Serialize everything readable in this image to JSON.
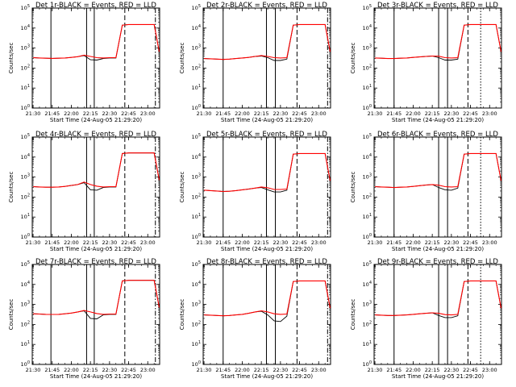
{
  "chart_data": {
    "type": "line",
    "x_tick_labels": [
      "21:30",
      "21:45",
      "22:00",
      "22:15",
      "22:30",
      "22:45",
      "23:00"
    ],
    "x_tick_times": [
      "21:30",
      "21:45",
      "22:00",
      "22:15",
      "22:30",
      "22:45",
      "23:00"
    ],
    "xlim": [
      "21:29:20",
      "23:09:20"
    ],
    "y_scale": "log",
    "ylim": [
      1,
      100000
    ],
    "y_tick_labels": [
      "10^0",
      "10^1",
      "10^2",
      "10^3",
      "10^4",
      "10^5"
    ],
    "ylabel": "Counts/sec",
    "xlabel": "Start Time (24-Aug-05 21:29:20)",
    "series_colors": {
      "Events": "#000000",
      "LLD": "#ff0000"
    },
    "time_grid": [
      "21:30",
      "21:35",
      "21:40",
      "21:45",
      "21:50",
      "21:55",
      "22:00",
      "22:05",
      "22:10",
      "22:15",
      "22:20",
      "22:25",
      "22:30",
      "22:35",
      "22:40",
      "22:45",
      "22:50",
      "22:55",
      "23:00",
      "23:05",
      "23:09"
    ],
    "panels": [
      {
        "title": "Det 1r-BLACK = Events, RED = LLD",
        "vlines_solid": [
          "21:44",
          "22:12",
          "22:18"
        ],
        "vlines_dashed": [
          "22:42"
        ],
        "vlines_dotted": [],
        "vlines_dashdot": [
          "23:06"
        ],
        "series": [
          {
            "name": "Events",
            "values": [
              330,
              320,
              310,
              305,
              310,
              320,
              340,
              370,
              420,
              260,
              250,
              300,
              320,
              320,
              14000,
              15000,
              15000,
              15000,
              15000,
              15000,
              650
            ]
          },
          {
            "name": "LLD",
            "values": [
              330,
              320,
              310,
              305,
              310,
              320,
              340,
              370,
              440,
              380,
              330,
              320,
              330,
              330,
              14000,
              15000,
              15000,
              15000,
              15000,
              15000,
              650
            ]
          }
        ]
      },
      {
        "title": "Det 2r-BLACK = Events, RED = LLD",
        "vlines_solid": [
          "21:45",
          "22:19",
          "22:26"
        ],
        "vlines_dashed": [
          "22:43"
        ],
        "vlines_dotted": [],
        "vlines_dashdot": [
          "23:07"
        ],
        "series": [
          {
            "name": "Events",
            "values": [
              300,
              290,
              280,
              270,
              280,
              300,
              320,
              340,
              380,
              400,
              330,
              240,
              240,
              280,
              14000,
              15000,
              15000,
              15000,
              15000,
              15000,
              650
            ]
          },
          {
            "name": "LLD",
            "values": [
              300,
              290,
              280,
              270,
              280,
              300,
              320,
              340,
              380,
              420,
              380,
              330,
              320,
              330,
              14000,
              15000,
              15000,
              15000,
              15000,
              15000,
              650
            ]
          }
        ]
      },
      {
        "title": "Det 3r-BLACK = Events, RED = LLD",
        "vlines_solid": [
          "21:45",
          "22:20",
          "22:27"
        ],
        "vlines_dashed": [
          "22:43"
        ],
        "vlines_dotted": [
          "22:53"
        ],
        "vlines_dashdot": [],
        "series": [
          {
            "name": "Events",
            "values": [
              320,
              310,
              300,
              300,
              310,
              320,
              340,
              360,
              380,
              400,
              330,
              250,
              250,
              280,
              14000,
              15000,
              15000,
              15000,
              15000,
              15000,
              650
            ]
          },
          {
            "name": "LLD",
            "values": [
              320,
              310,
              300,
              300,
              310,
              320,
              340,
              360,
              380,
              400,
              390,
              330,
              320,
              330,
              14000,
              15000,
              15000,
              15000,
              15000,
              15000,
              650
            ]
          }
        ]
      },
      {
        "title": "Det 4r-BLACK = Events, RED = LLD",
        "vlines_solid": [
          "21:44",
          "22:12",
          "22:18"
        ],
        "vlines_dashed": [
          "22:42"
        ],
        "vlines_dotted": [],
        "vlines_dashdot": [
          "23:06"
        ],
        "series": [
          {
            "name": "Events",
            "values": [
              330,
              320,
              310,
              310,
              320,
              340,
              380,
              420,
              520,
              230,
              220,
              300,
              320,
              320,
              15000,
              16000,
              16000,
              16000,
              16000,
              16000,
              700
            ]
          },
          {
            "name": "LLD",
            "values": [
              330,
              320,
              310,
              310,
              320,
              340,
              380,
              420,
              560,
              420,
              350,
              320,
              330,
              330,
              15000,
              16000,
              16000,
              16000,
              16000,
              16000,
              700
            ]
          }
        ]
      },
      {
        "title": "Det 5r-BLACK = Events, RED = LLD",
        "vlines_solid": [
          "21:45",
          "22:19",
          "22:26"
        ],
        "vlines_dashed": [
          "22:43"
        ],
        "vlines_dotted": [],
        "vlines_dashdot": [
          "23:07"
        ],
        "series": [
          {
            "name": "Events",
            "values": [
              220,
              210,
              200,
              190,
              195,
              210,
              230,
              250,
              280,
              300,
              230,
              180,
              180,
              220,
              14000,
              15000,
              15000,
              15000,
              15000,
              15000,
              650
            ]
          },
          {
            "name": "LLD",
            "values": [
              220,
              210,
              200,
              190,
              195,
              210,
              230,
              250,
              280,
              320,
              290,
              240,
              240,
              250,
              14000,
              15000,
              15000,
              15000,
              15000,
              15000,
              650
            ]
          }
        ]
      },
      {
        "title": "Det 6r-BLACK = Events, RED = LLD",
        "vlines_solid": [
          "21:45",
          "22:20",
          "22:27"
        ],
        "vlines_dashed": [
          "22:43"
        ],
        "vlines_dotted": [
          "22:53"
        ],
        "vlines_dashdot": [],
        "series": [
          {
            "name": "Events",
            "values": [
              330,
              320,
              310,
              300,
              310,
              320,
              340,
              370,
              400,
              420,
              300,
              230,
              220,
              280,
              14000,
              15000,
              15000,
              15000,
              15000,
              15000,
              650
            ]
          },
          {
            "name": "LLD",
            "values": [
              330,
              320,
              310,
              300,
              310,
              320,
              340,
              370,
              400,
              420,
              390,
              330,
              320,
              330,
              14000,
              15000,
              15000,
              15000,
              15000,
              15000,
              650
            ]
          }
        ]
      },
      {
        "title": "Det 7r-BLACK = Events, RED = LLD",
        "vlines_solid": [
          "21:44",
          "22:12",
          "22:18"
        ],
        "vlines_dashed": [
          "22:42"
        ],
        "vlines_dotted": [],
        "vlines_dashdot": [
          "23:06"
        ],
        "series": [
          {
            "name": "Events",
            "values": [
              340,
              330,
              320,
              315,
              320,
              340,
              370,
              420,
              480,
              200,
              190,
              300,
              320,
              320,
              15000,
              16000,
              16000,
              16000,
              16000,
              16000,
              700
            ]
          },
          {
            "name": "LLD",
            "values": [
              340,
              330,
              320,
              315,
              320,
              340,
              370,
              420,
              500,
              420,
              350,
              320,
              330,
              330,
              15000,
              16000,
              16000,
              16000,
              16000,
              16000,
              700
            ]
          }
        ]
      },
      {
        "title": "Det 8r-BLACK = Events, RED = LLD",
        "vlines_solid": [
          "21:45",
          "22:19",
          "22:26"
        ],
        "vlines_dashed": [
          "22:43"
        ],
        "vlines_dotted": [],
        "vlines_dashdot": [
          "23:07"
        ],
        "series": [
          {
            "name": "Events",
            "values": [
              300,
              290,
              280,
              270,
              280,
              300,
              320,
              360,
              420,
              460,
              300,
              150,
              140,
              260,
              14000,
              15000,
              15000,
              15000,
              15000,
              15000,
              650
            ]
          },
          {
            "name": "LLD",
            "values": [
              300,
              290,
              280,
              270,
              280,
              300,
              320,
              360,
              420,
              480,
              420,
              340,
              320,
              330,
              14000,
              15000,
              15000,
              15000,
              15000,
              15000,
              650
            ]
          }
        ]
      },
      {
        "title": "Det 9r-BLACK = Events, RED = LLD",
        "vlines_solid": [
          "21:45",
          "22:20",
          "22:27"
        ],
        "vlines_dashed": [
          "22:43"
        ],
        "vlines_dotted": [
          "22:53"
        ],
        "vlines_dashdot": [],
        "series": [
          {
            "name": "Events",
            "values": [
              300,
              290,
              280,
              280,
              290,
              300,
              320,
              340,
              360,
              380,
              280,
              220,
              220,
              270,
              14000,
              15000,
              15000,
              15000,
              15000,
              15000,
              650
            ]
          },
          {
            "name": "LLD",
            "values": [
              300,
              290,
              280,
              280,
              290,
              300,
              320,
              340,
              360,
              380,
              360,
              310,
              300,
              320,
              14000,
              15000,
              15000,
              15000,
              15000,
              15000,
              650
            ]
          }
        ]
      }
    ]
  }
}
